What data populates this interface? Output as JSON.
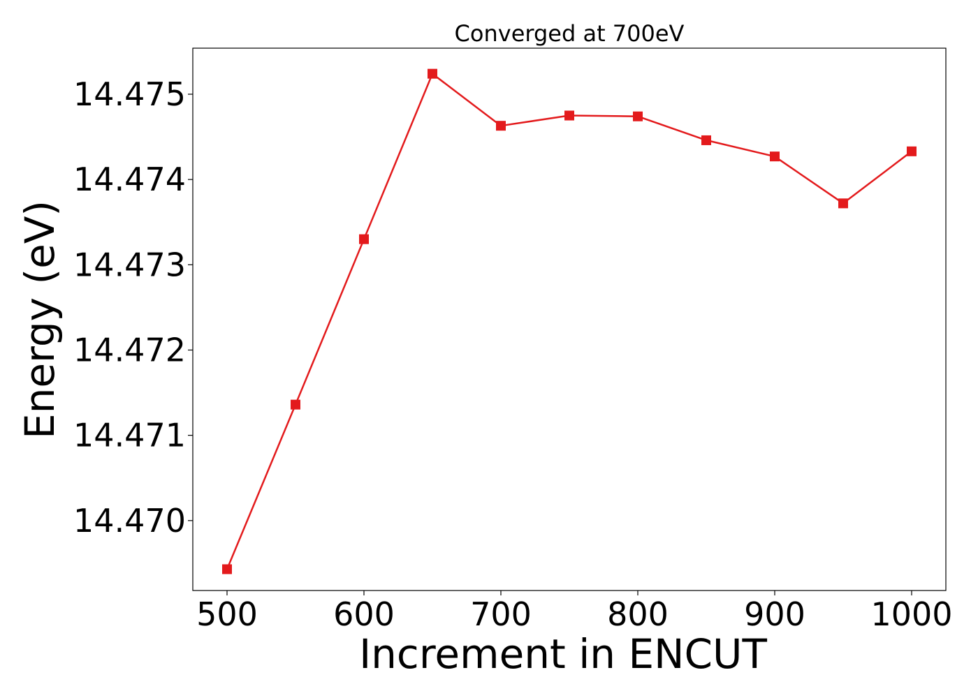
{
  "chart_data": {
    "type": "line",
    "title": "Converged at 700eV",
    "xlabel": "Increment in ENCUT",
    "ylabel": "Energy (eV)",
    "x": [
      500,
      550,
      600,
      650,
      700,
      750,
      800,
      850,
      900,
      950,
      1000
    ],
    "series": [
      {
        "values": [
          14.46943,
          14.47136,
          14.4733,
          14.47524,
          14.47463,
          14.47475,
          14.47474,
          14.47446,
          14.47427,
          14.47372,
          14.47433
        ],
        "color": "#e31a1c",
        "marker": "square"
      }
    ],
    "xlim": [
      475,
      1025
    ],
    "ylim": [
      14.46918,
      14.47554
    ],
    "xticks": [
      500,
      600,
      700,
      800,
      900,
      1000
    ],
    "xtick_labels": [
      "500",
      "600",
      "700",
      "800",
      "900",
      "1000"
    ],
    "yticks": [
      14.47,
      14.471,
      14.472,
      14.473,
      14.474,
      14.475
    ],
    "ytick_labels": [
      "14.470",
      "14.471",
      "14.472",
      "14.473",
      "14.474",
      "14.475"
    ],
    "grid": false,
    "legend": "none"
  }
}
